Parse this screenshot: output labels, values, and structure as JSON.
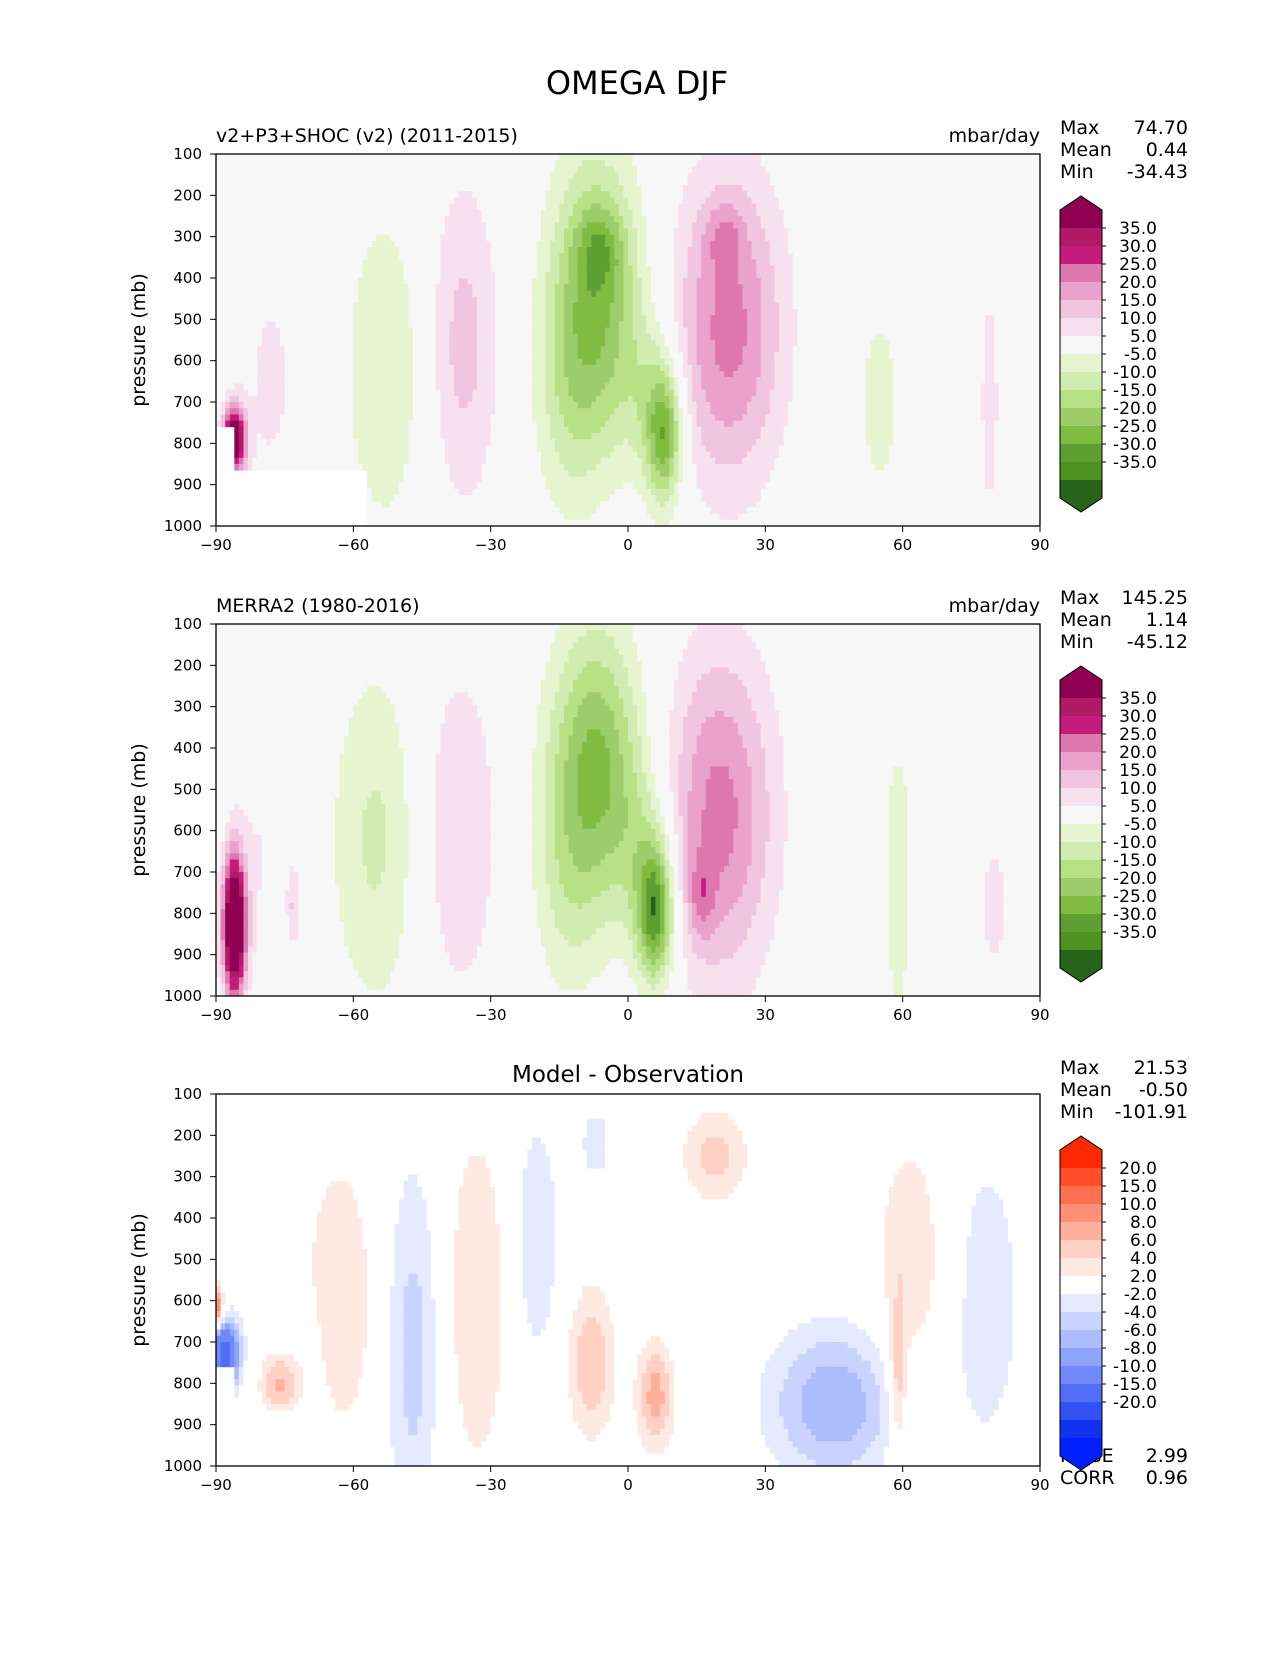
{
  "title": "OMEGA DJF",
  "colormap_omega": [
    "#8e0152",
    "#b01a66",
    "#c51b7d",
    "#de77ae",
    "#eaa1cc",
    "#f1c5df",
    "#f8e1ee",
    "#f7f7f7",
    "#e6f5d0",
    "#d0ecb0",
    "#b8e186",
    "#9ccd6a",
    "#7fbc41",
    "#5e9e32",
    "#4d9221",
    "#276419"
  ],
  "colormap_diff": [
    "#ff2a00",
    "#ff4f2a",
    "#ff7050",
    "#ff9075",
    "#ffb09c",
    "#ffd0c3",
    "#ffeae3",
    "#ffffff",
    "#e5eafe",
    "#c9d3fd",
    "#adbcfc",
    "#8ea3fa",
    "#7088f8",
    "#516df6",
    "#3251f3",
    "#1133f0",
    "#0020ff"
  ],
  "chart_data": [
    {
      "type": "heatmap",
      "panel": "top",
      "title_left": "v2+P3+SHOC (v2) (2011-2015)",
      "units": "mbar/day",
      "ylabel": "pressure (mb)",
      "xlabel": "",
      "xlim": [
        -90,
        90
      ],
      "ylim": [
        1000,
        100
      ],
      "x_ticks": [
        "−90",
        "−60",
        "−30",
        "0",
        "30",
        "60",
        "90"
      ],
      "y_ticks": [
        "100",
        "200",
        "300",
        "400",
        "500",
        "600",
        "700",
        "800",
        "900",
        "1000"
      ],
      "stats": {
        "max_label": "Max",
        "max": "74.70",
        "mean_label": "Mean",
        "mean": "0.44",
        "min_label": "Min",
        "min": "-34.43"
      },
      "colorbar_labels": [
        "35.0",
        "30.0",
        "25.0",
        "20.0",
        "15.0",
        "10.0",
        "5.0",
        "-5.0",
        "-10.0",
        "-15.0",
        "-20.0",
        "-25.0",
        "-30.0",
        "-35.0"
      ],
      "blobs": [
        {
          "lat": -7,
          "p": 450,
          "wlat": 10,
          "wp": 350,
          "v": -25
        },
        {
          "lat": -6,
          "p": 330,
          "wlat": 5,
          "wp": 100,
          "v": -10
        },
        {
          "lat": 8,
          "p": 780,
          "wlat": 4,
          "wp": 170,
          "v": -28
        },
        {
          "lat": 4,
          "p": 680,
          "wlat": 6,
          "wp": 200,
          "v": -8
        },
        {
          "lat": -13,
          "p": 700,
          "wlat": 8,
          "wp": 300,
          "v": -8
        },
        {
          "lat": 22,
          "p": 520,
          "wlat": 12,
          "wp": 380,
          "v": 22
        },
        {
          "lat": 21,
          "p": 300,
          "wlat": 4,
          "wp": 80,
          "v": 8
        },
        {
          "lat": -36,
          "p": 560,
          "wlat": 8,
          "wp": 400,
          "v": 12
        },
        {
          "lat": -53,
          "p": 620,
          "wlat": 9,
          "wp": 400,
          "v": -10
        },
        {
          "lat": -78,
          "p": 650,
          "wlat": 7,
          "wp": 350,
          "v": 6
        },
        {
          "lat": -86,
          "p": 790,
          "wlat": 2.5,
          "wp": 80,
          "v": 45
        },
        {
          "lat": 79,
          "p": 700,
          "wlat": 2,
          "wp": 280,
          "v": 9
        },
        {
          "lat": 55,
          "p": 700,
          "wlat": 8,
          "wp": 380,
          "v": -6
        }
      ],
      "mask": [
        {
          "lat1": -90,
          "lat2": -57,
          "p1": 870,
          "p2": 1000
        },
        {
          "lat1": -90,
          "lat2": -86,
          "p1": 755,
          "p2": 870
        }
      ]
    },
    {
      "type": "heatmap",
      "panel": "middle",
      "title_left": "MERRA2 (1980-2016)",
      "units": "mbar/day",
      "ylabel": "pressure (mb)",
      "xlabel": "",
      "xlim": [
        -90,
        90
      ],
      "ylim": [
        1000,
        100
      ],
      "x_ticks": [
        "−90",
        "−60",
        "−30",
        "0",
        "30",
        "60",
        "90"
      ],
      "y_ticks": [
        "100",
        "200",
        "300",
        "400",
        "500",
        "600",
        "700",
        "800",
        "900",
        "1000"
      ],
      "stats": {
        "max_label": "Max",
        "max": "145.25",
        "mean_label": "Mean",
        "mean": "1.14",
        "min_label": "Min",
        "min": "-45.12"
      },
      "colorbar_labels": [
        "35.0",
        "30.0",
        "25.0",
        "20.0",
        "15.0",
        "10.0",
        "5.0",
        "-5.0",
        "-10.0",
        "-15.0",
        "-20.0",
        "-25.0",
        "-30.0",
        "-35.0"
      ],
      "blobs": [
        {
          "lat": -7,
          "p": 430,
          "wlat": 10,
          "wp": 330,
          "v": -25
        },
        {
          "lat": 6,
          "p": 800,
          "wlat": 4,
          "wp": 170,
          "v": -32
        },
        {
          "lat": 3,
          "p": 660,
          "wlat": 7,
          "wp": 230,
          "v": -10
        },
        {
          "lat": -13,
          "p": 720,
          "wlat": 8,
          "wp": 300,
          "v": -9
        },
        {
          "lat": 20,
          "p": 560,
          "wlat": 12,
          "wp": 400,
          "v": 22
        },
        {
          "lat": 16,
          "p": 760,
          "wlat": 3,
          "wp": 100,
          "v": 10
        },
        {
          "lat": -37,
          "p": 600,
          "wlat": 9,
          "wp": 420,
          "v": 10
        },
        {
          "lat": -55,
          "p": 620,
          "wlat": 10,
          "wp": 420,
          "v": -11
        },
        {
          "lat": -80,
          "p": 650,
          "wlat": 6,
          "wp": 380,
          "v": 5
        },
        {
          "lat": -86,
          "p": 830,
          "wlat": 2.5,
          "wp": 170,
          "v": 55
        },
        {
          "lat": -73,
          "p": 780,
          "wlat": 1.5,
          "wp": 100,
          "v": 10
        },
        {
          "lat": 59,
          "p": 720,
          "wlat": 3,
          "wp": 340,
          "v": -10
        },
        {
          "lat": 80,
          "p": 780,
          "wlat": 3,
          "wp": 150,
          "v": 9
        }
      ],
      "mask": []
    },
    {
      "type": "heatmap",
      "panel": "bottom",
      "title_center": "Model - Observation",
      "units": "",
      "ylabel": "pressure (mb)",
      "xlabel": "",
      "xlim": [
        -90,
        90
      ],
      "ylim": [
        1000,
        100
      ],
      "x_ticks": [
        "−90",
        "−60",
        "−30",
        "0",
        "30",
        "60",
        "90"
      ],
      "y_ticks": [
        "100",
        "200",
        "300",
        "400",
        "500",
        "600",
        "700",
        "800",
        "900",
        "1000"
      ],
      "stats": {
        "max_label": "Max",
        "max": "21.53",
        "mean_label": "Mean",
        "mean": "-0.50",
        "min_label": "Min",
        "min": "-101.91"
      },
      "metrics": {
        "rmse_label": "RMSE",
        "rmse": "2.99",
        "corr_label": "CORR",
        "corr": "0.96"
      },
      "colorbar_labels": [
        "20.0",
        "15.0",
        "10.0",
        "8.0",
        "6.0",
        "4.0",
        "2.0",
        "-2.0",
        "-4.0",
        "-6.0",
        "-8.0",
        "-10.0",
        "-15.0",
        "-20.0"
      ],
      "blobs": [
        {
          "lat": -47,
          "p": 720,
          "wlat": 6,
          "wp": 450,
          "v": -5
        },
        {
          "lat": -63,
          "p": 600,
          "wlat": 8,
          "wp": 350,
          "v": 4
        },
        {
          "lat": -33,
          "p": 600,
          "wlat": 7,
          "wp": 430,
          "v": 4
        },
        {
          "lat": -20,
          "p": 450,
          "wlat": 5,
          "wp": 300,
          "v": -4
        },
        {
          "lat": -8,
          "p": 750,
          "wlat": 5,
          "wp": 180,
          "v": 6
        },
        {
          "lat": 6,
          "p": 830,
          "wlat": 4,
          "wp": 130,
          "v": 7
        },
        {
          "lat": 19,
          "p": 250,
          "wlat": 7,
          "wp": 110,
          "v": 5
        },
        {
          "lat": -7,
          "p": 220,
          "wlat": 3,
          "wp": 80,
          "v": -4
        },
        {
          "lat": 45,
          "p": 850,
          "wlat": 14,
          "wp": 180,
          "v": -8
        },
        {
          "lat": 62,
          "p": 500,
          "wlat": 8,
          "wp": 300,
          "v": 4
        },
        {
          "lat": 59,
          "p": 800,
          "wlat": 2,
          "wp": 180,
          "v": 6
        },
        {
          "lat": 78,
          "p": 600,
          "wlat": 10,
          "wp": 450,
          "v": -3
        },
        {
          "lat": -75,
          "p": 780,
          "wlat": 8,
          "wp": 200,
          "v": -3
        },
        {
          "lat": -76,
          "p": 800,
          "wlat": 5,
          "wp": 90,
          "v": 9
        },
        {
          "lat": -88,
          "p": 730,
          "wlat": 3,
          "wp": 80,
          "v": -18
        },
        {
          "lat": -90,
          "p": 620,
          "wlat": 1.5,
          "wp": 50,
          "v": 12
        }
      ],
      "mask": [
        {
          "lat1": -90,
          "lat2": -57,
          "p1": 870,
          "p2": 1000
        },
        {
          "lat1": -90,
          "lat2": -86,
          "p1": 755,
          "p2": 870
        }
      ]
    }
  ]
}
